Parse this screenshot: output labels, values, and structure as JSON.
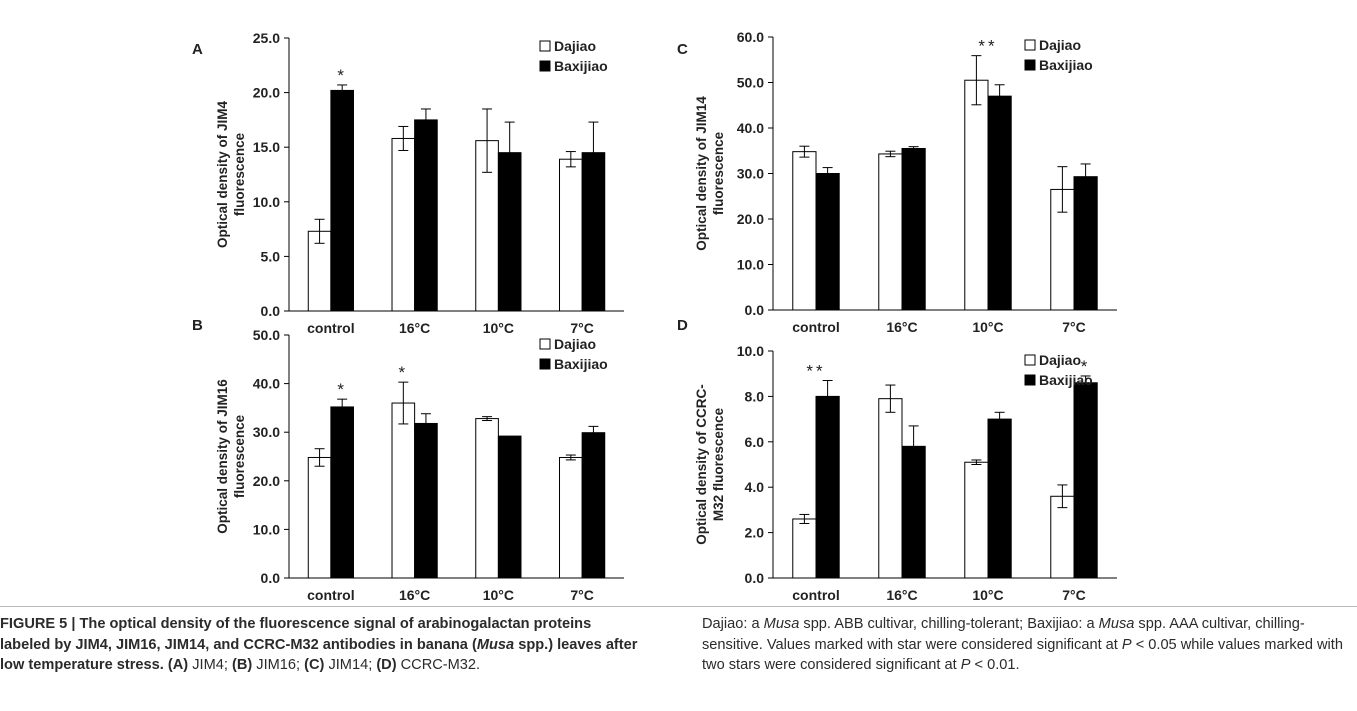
{
  "legend": {
    "dajiao": "Dajiao",
    "baxijiao": "Baxijiao"
  },
  "chart_data": [
    {
      "type": "bar",
      "panel": "A",
      "ylabel": [
        "Optical density of JIM4",
        "fluorescence"
      ],
      "categories": [
        "control",
        "16°C",
        "10°C",
        "7°C"
      ],
      "ylim": [
        0,
        25
      ],
      "yticks": [
        "0.0",
        "5.0",
        "10.0",
        "15.0",
        "20.0",
        "25.0"
      ],
      "series": [
        {
          "name": "Dajiao",
          "color": "#ffffff",
          "values": [
            7.3,
            15.8,
            15.6,
            13.9
          ],
          "errors": [
            1.1,
            1.1,
            2.9,
            0.7
          ]
        },
        {
          "name": "Baxijiao",
          "color": "#000000",
          "values": [
            20.2,
            17.5,
            14.5,
            14.5
          ],
          "errors": [
            0.5,
            1.0,
            2.8,
            2.8
          ]
        }
      ],
      "significance": [
        {
          "series": 1,
          "category": 0,
          "mark": "*"
        }
      ],
      "legend_position": "top-right"
    },
    {
      "type": "bar",
      "panel": "B",
      "ylabel": [
        "Optical density of JIM16",
        "fluorescence"
      ],
      "categories": [
        "control",
        "16°C",
        "10°C",
        "7°C"
      ],
      "ylim": [
        0,
        50
      ],
      "yticks": [
        "0.0",
        "10.0",
        "20.0",
        "30.0",
        "40.0",
        "50.0"
      ],
      "series": [
        {
          "name": "Dajiao",
          "color": "#ffffff",
          "values": [
            24.8,
            36.0,
            32.8,
            24.8
          ],
          "errors": [
            1.8,
            4.3,
            0.4,
            0.5
          ]
        },
        {
          "name": "Baxijiao",
          "color": "#000000",
          "values": [
            35.2,
            31.8,
            29.2,
            29.9
          ],
          "errors": [
            1.6,
            2.0,
            0.0,
            1.3
          ]
        }
      ],
      "significance": [
        {
          "series": 1,
          "category": 0,
          "mark": "*"
        },
        {
          "series": 0,
          "category": 1,
          "mark": "*"
        }
      ],
      "legend_position": "top-right"
    },
    {
      "type": "bar",
      "panel": "C",
      "ylabel": [
        "Optical density of JIM14",
        "fluorescence"
      ],
      "categories": [
        "control",
        "16°C",
        "10°C",
        "7°C"
      ],
      "ylim": [
        0,
        60
      ],
      "yticks": [
        "0.0",
        "10.0",
        "20.0",
        "30.0",
        "40.0",
        "50.0",
        "60.0"
      ],
      "series": [
        {
          "name": "Dajiao",
          "color": "#ffffff",
          "values": [
            34.8,
            34.3,
            50.5,
            26.5
          ],
          "errors": [
            1.2,
            0.6,
            5.4,
            5.0
          ]
        },
        {
          "name": "Baxijiao",
          "color": "#000000",
          "values": [
            30.0,
            35.5,
            47.0,
            29.3
          ],
          "errors": [
            1.3,
            0.4,
            2.5,
            2.8
          ]
        }
      ],
      "significance": [
        {
          "series": 0,
          "category": 2,
          "mark": "**"
        }
      ],
      "legend_position": "top-right"
    },
    {
      "type": "bar",
      "panel": "D",
      "ylabel": [
        "Optical density of CCRC-",
        "M32 fluorescence"
      ],
      "categories": [
        "control",
        "16°C",
        "10°C",
        "7°C"
      ],
      "ylim": [
        0,
        10
      ],
      "yticks": [
        "0.0",
        "2.0",
        "4.0",
        "6.0",
        "8.0",
        "10.0"
      ],
      "series": [
        {
          "name": "Dajiao",
          "color": "#ffffff",
          "values": [
            2.6,
            7.9,
            5.1,
            3.6
          ],
          "errors": [
            0.2,
            0.6,
            0.1,
            0.5
          ]
        },
        {
          "name": "Baxijiao",
          "color": "#000000",
          "values": [
            8.0,
            5.8,
            7.0,
            8.6
          ],
          "errors": [
            0.7,
            0.9,
            0.3,
            0.3
          ]
        }
      ],
      "significance": [
        {
          "series": 1,
          "category": 0,
          "mark": "**"
        },
        {
          "series": 1,
          "category": 3,
          "mark": "*"
        }
      ],
      "legend_position": "top-right"
    }
  ],
  "caption": {
    "figure_label": "FIGURE 5 | ",
    "title_bold": "The optical density of the fluorescence signal of arabinogalactan proteins labeled by JIM4, JIM16, JIM14, and CCRC-M32 antibodies in banana (",
    "title_italic": "Musa",
    "title_bold_end": " spp.) leaves after low temperature stress.",
    "panels": [
      {
        "label": "(A)",
        "text": " JIM4; "
      },
      {
        "label": "(B)",
        "text": " JIM16; "
      },
      {
        "label": "(C)",
        "text": " JIM14; "
      },
      {
        "label": "(D)",
        "text": " CCRC-M32."
      }
    ],
    "right_1": "Dajiao: a ",
    "right_musa1": "Musa",
    "right_2": " spp. ABB cultivar, chilling-tolerant; Baxijiao: a ",
    "right_musa2": "Musa",
    "right_3": " spp. AAA cultivar, chilling-sensitive. Values marked with star were considered significant at ",
    "p1": "P",
    "right_4": " < 0.05 while values marked with two stars were considered significant at ",
    "p2": "P",
    "right_5": " < 0.01."
  }
}
